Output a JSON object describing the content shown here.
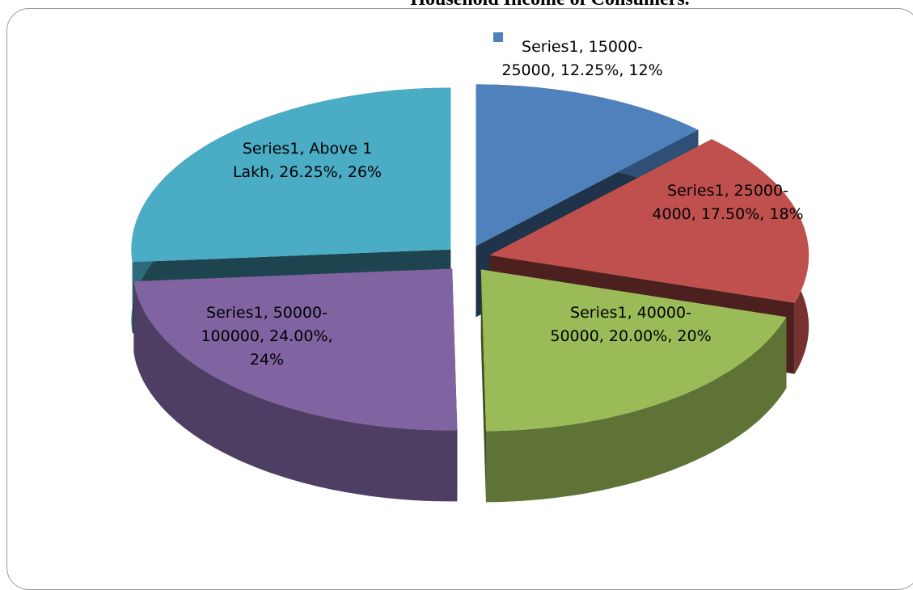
{
  "chart_data": {
    "type": "pie",
    "title": "Household Income of Consumers.",
    "series_name": "Series1",
    "categories": [
      "15000-25000",
      "25000-4000",
      "40000-50000",
      "50000-100000",
      "Above 1 Lakh"
    ],
    "values": [
      12.25,
      17.5,
      20,
      24,
      26.25
    ],
    "value_labels": [
      "Series1, 15000-25000, 12.25%, 12%",
      "Series1, 25000-4000, 17.50%, 18%",
      "Series1, 40000-50000, 20.00%, 20%",
      "Series1, 50000-100000, 24.00%, 24%",
      "Series1, Above 1 Lakh, 26.25%, 26%"
    ],
    "colors": [
      "#4f81bd",
      "#c0504d",
      "#9bbb59",
      "#8064a2",
      "#4bacc6"
    ],
    "exploded": true,
    "three_d": true
  }
}
